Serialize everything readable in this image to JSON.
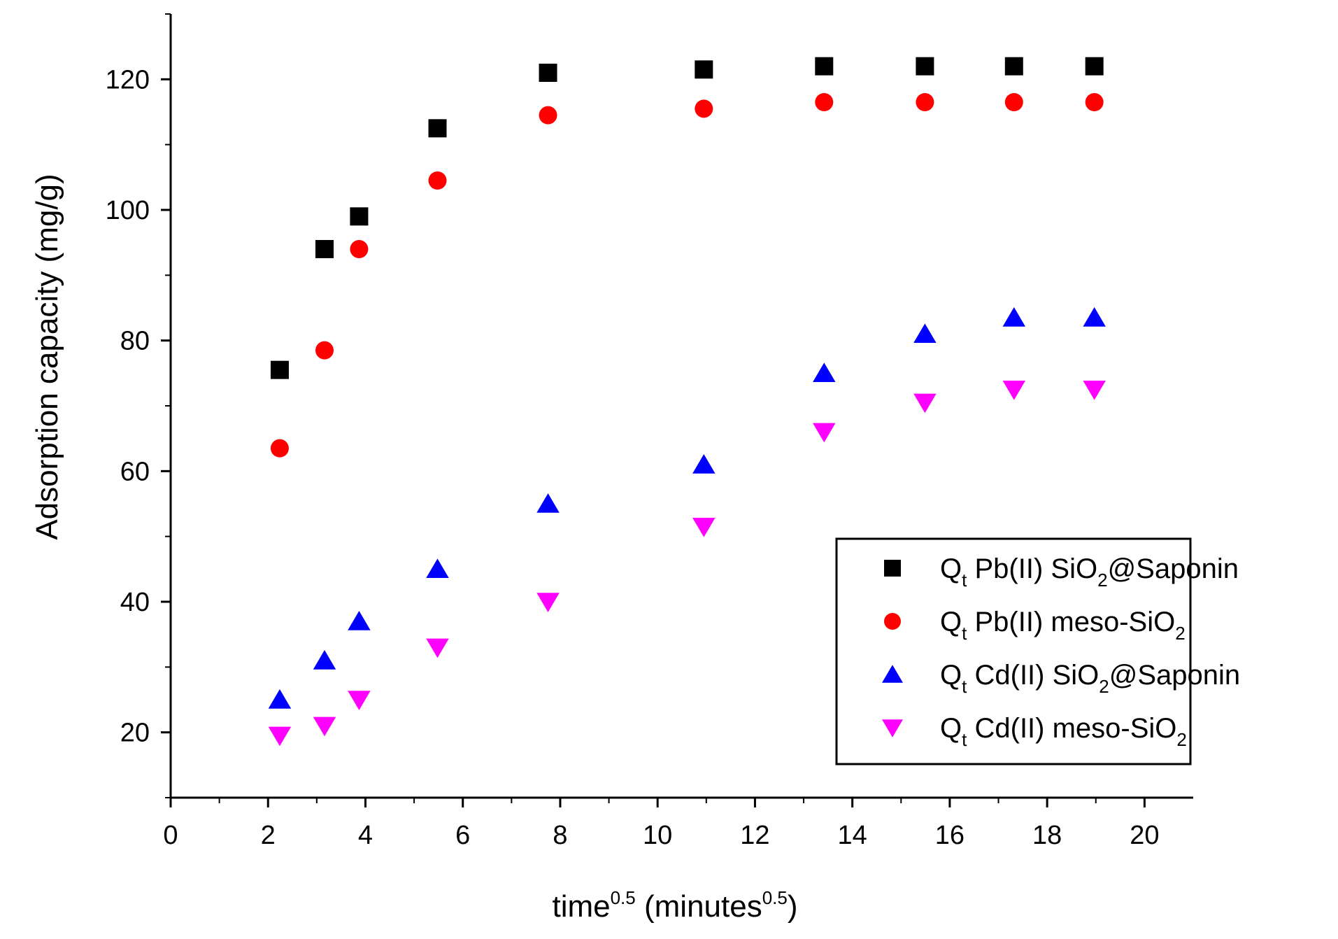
{
  "chart_data": {
    "type": "scatter",
    "title": "",
    "xlabel": "time",
    "xlabel_sup": "0.5",
    "xlabel_unit": "(minutes",
    "xlabel_unit_sup": "0.5",
    "xlabel_close": ")",
    "ylabel": "Adsorption capacity (mg/g)",
    "xlim": [
      0,
      21
    ],
    "ylim": [
      10,
      130
    ],
    "x_ticks": [
      0,
      2,
      4,
      6,
      8,
      10,
      12,
      14,
      16,
      18,
      20
    ],
    "y_ticks": [
      20,
      40,
      60,
      80,
      100,
      120
    ],
    "legend_position": "bottom-right",
    "series": [
      {
        "name": "Qt Pb(II) SiO2@Saponin",
        "legend": {
          "q": "Q",
          "q_sub": "t",
          "metal": "Pb(II)",
          "mat": "SiO",
          "mat_sub": "2",
          "mat_tail": "@Saponin"
        },
        "marker": "square",
        "color": "#000000",
        "x": [
          2.24,
          3.16,
          3.87,
          5.48,
          7.75,
          10.95,
          13.42,
          15.49,
          17.32,
          18.97
        ],
        "y": [
          75.5,
          94,
          99,
          112.5,
          121,
          121.5,
          122,
          122,
          122,
          122
        ]
      },
      {
        "name": "Qt Pb(II) meso-SiO2",
        "legend": {
          "q": "Q",
          "q_sub": "t",
          "metal": "Pb(II)",
          "mat": "meso-SiO",
          "mat_sub": "2",
          "mat_tail": ""
        },
        "marker": "circle",
        "color": "#ff0000",
        "x": [
          2.24,
          3.16,
          3.87,
          5.48,
          7.75,
          10.95,
          13.42,
          15.49,
          17.32,
          18.97
        ],
        "y": [
          63.5,
          78.5,
          94,
          104.5,
          114.5,
          115.5,
          116.5,
          116.5,
          116.5,
          116.5
        ]
      },
      {
        "name": "Qt Cd(II) SiO2@Saponin",
        "legend": {
          "q": "Q",
          "q_sub": "t",
          "metal": "Cd(II)",
          "mat": "SiO",
          "mat_sub": "2",
          "mat_tail": "@Saponin"
        },
        "marker": "triangle-up",
        "color": "#0000ff",
        "x": [
          2.24,
          3.16,
          3.87,
          5.48,
          7.75,
          10.95,
          13.42,
          15.49,
          17.32,
          18.97
        ],
        "y": [
          25,
          31,
          37,
          45,
          55,
          61,
          75,
          81,
          83.5,
          83.5
        ]
      },
      {
        "name": "Qt Cd(II) meso-SiO2",
        "legend": {
          "q": "Q",
          "q_sub": "t",
          "metal": "Cd(II)",
          "mat": "meso-SiO",
          "mat_sub": "2",
          "mat_tail": ""
        },
        "marker": "triangle-down",
        "color": "#ff00ff",
        "x": [
          2.24,
          3.16,
          3.87,
          5.48,
          7.75,
          10.95,
          13.42,
          15.49,
          17.32,
          18.97
        ],
        "y": [
          19.5,
          21,
          25,
          33,
          40,
          51.5,
          66,
          70.5,
          72.5,
          72.5
        ]
      }
    ]
  }
}
